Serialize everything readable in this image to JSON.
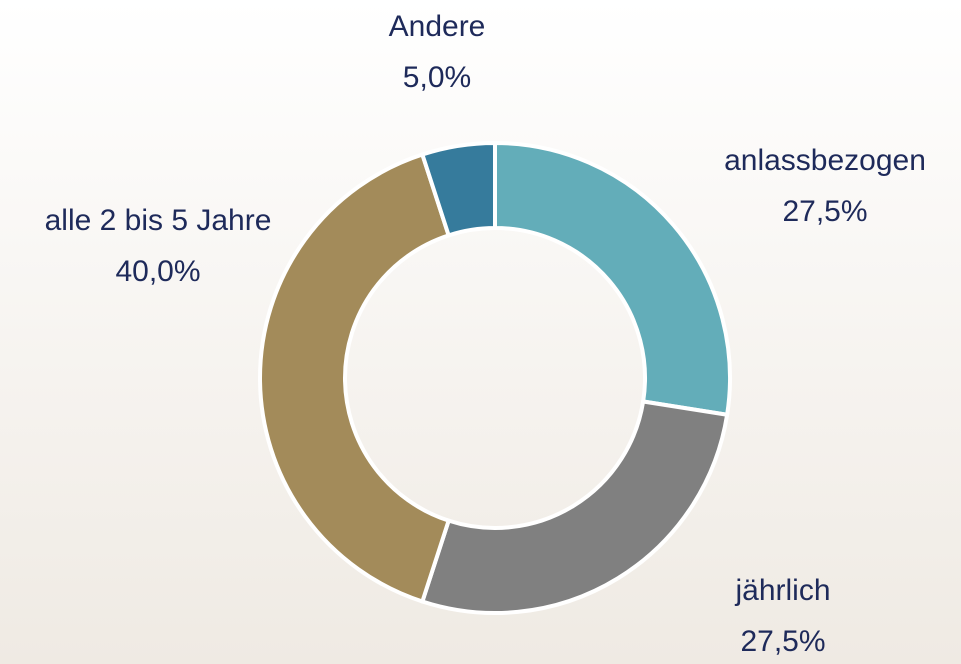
{
  "chart_data": {
    "type": "donut",
    "categories": [
      "anlassbezogen",
      "jährlich",
      "alle 2 bis 5 Jahre",
      "Andere"
    ],
    "values": [
      27.5,
      27.5,
      40.0,
      5.0
    ],
    "value_labels": [
      "27,5%",
      "27,5%",
      "40,0%",
      "5,0%"
    ],
    "colors": [
      "#63adb9",
      "#808080",
      "#a38b5a",
      "#367b9c"
    ]
  }
}
